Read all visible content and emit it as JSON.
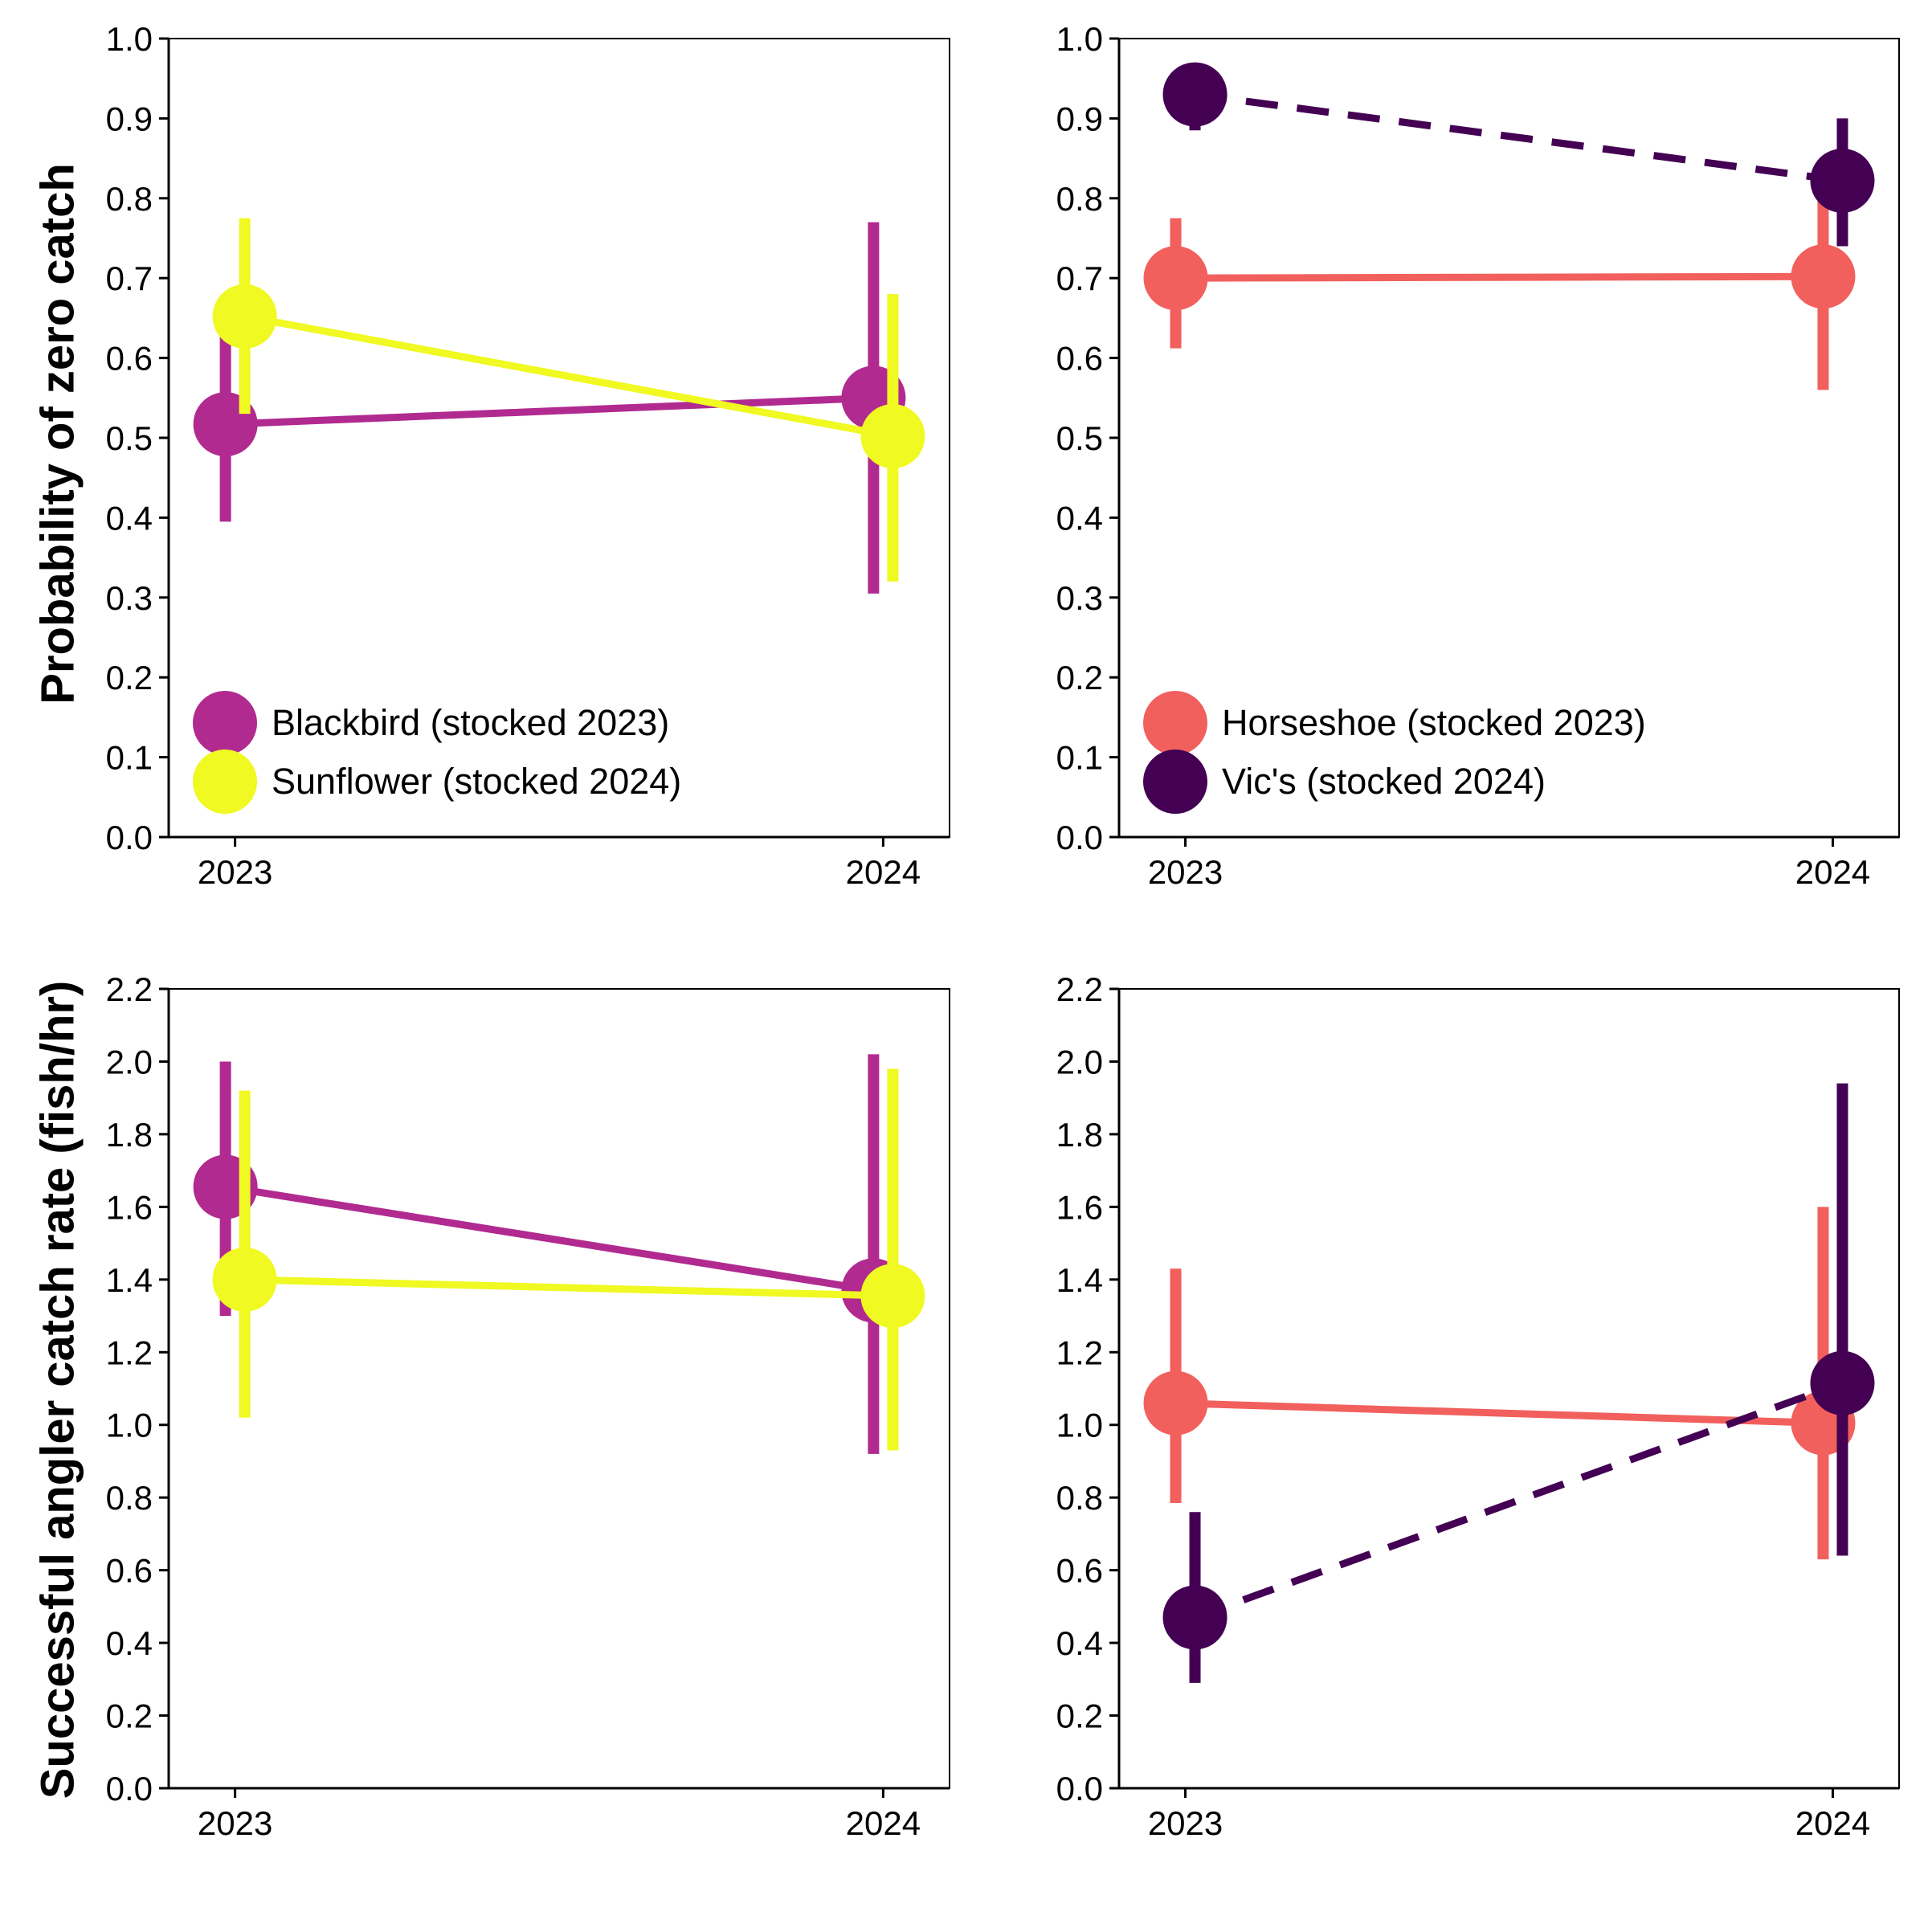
{
  "ylabels": {
    "top": "Probability of zero catch",
    "bottom": "Successful angler catch rate (fish/hr)"
  },
  "colors": {
    "blackbird": "#B12A90",
    "sunflower": "#F0F921",
    "horseshoe": "#F1605D",
    "vics": "#440154"
  },
  "chart_data": [
    {
      "type": "line",
      "panel": "top-left",
      "title": "",
      "xlabel": "",
      "ylabel": "Probability of zero catch",
      "categories": [
        "2023",
        "2024"
      ],
      "ylim": [
        0,
        1
      ],
      "yticks": [
        "0.0",
        "0.1",
        "0.2",
        "0.3",
        "0.4",
        "0.5",
        "0.6",
        "0.7",
        "0.8",
        "0.9",
        "1.0"
      ],
      "legend_position": "bottom-left",
      "series": [
        {
          "name": "Blackbird (stocked 2023)",
          "color": "#B12A90",
          "dashed": false,
          "values": [
            0.517,
            0.55
          ],
          "lower": [
            0.395,
            0.305
          ],
          "upper": [
            0.64,
            0.77
          ]
        },
        {
          "name": "Sunflower (stocked 2024)",
          "color": "#F0F921",
          "dashed": false,
          "values": [
            0.652,
            0.502
          ],
          "lower": [
            0.53,
            0.32
          ],
          "upper": [
            0.775,
            0.68
          ]
        }
      ]
    },
    {
      "type": "line",
      "panel": "top-right",
      "title": "",
      "xlabel": "",
      "ylabel": "",
      "categories": [
        "2023",
        "2024"
      ],
      "ylim": [
        0,
        1
      ],
      "yticks": [
        "0.0",
        "0.1",
        "0.2",
        "0.3",
        "0.4",
        "0.5",
        "0.6",
        "0.7",
        "0.8",
        "0.9",
        "1.0"
      ],
      "legend_position": "bottom-left",
      "series": [
        {
          "name": "Horseshoe (stocked 2023)",
          "color": "#F1605D",
          "dashed": false,
          "values": [
            0.7,
            0.702
          ],
          "lower": [
            0.612,
            0.56
          ],
          "upper": [
            0.775,
            0.81
          ]
        },
        {
          "name": "Vic's (stocked 2024)",
          "color": "#440154",
          "dashed": true,
          "values": [
            0.93,
            0.822
          ],
          "lower": [
            0.885,
            0.74
          ],
          "upper": [
            0.96,
            0.9
          ]
        }
      ]
    },
    {
      "type": "line",
      "panel": "bottom-left",
      "title": "",
      "xlabel": "",
      "ylabel": "Successful angler catch rate (fish/hr)",
      "categories": [
        "2023",
        "2024"
      ],
      "ylim": [
        0,
        2.2
      ],
      "yticks": [
        "0.0",
        "0.2",
        "0.4",
        "0.6",
        "0.8",
        "1.0",
        "1.2",
        "1.4",
        "1.6",
        "1.8",
        "2.0",
        "2.2"
      ],
      "legend_position": "none",
      "series": [
        {
          "name": "Blackbird (stocked 2023)",
          "color": "#B12A90",
          "dashed": false,
          "values": [
            1.655,
            1.37
          ],
          "lower": [
            1.3,
            0.92
          ],
          "upper": [
            2.0,
            2.02
          ]
        },
        {
          "name": "Sunflower (stocked 2024)",
          "color": "#F0F921",
          "dashed": false,
          "values": [
            1.4,
            1.355
          ],
          "lower": [
            1.02,
            0.93
          ],
          "upper": [
            1.92,
            1.98
          ]
        }
      ]
    },
    {
      "type": "line",
      "panel": "bottom-right",
      "title": "",
      "xlabel": "",
      "ylabel": "",
      "categories": [
        "2023",
        "2024"
      ],
      "ylim": [
        0,
        2.2
      ],
      "yticks": [
        "0.0",
        "0.2",
        "0.4",
        "0.6",
        "0.8",
        "1.0",
        "1.2",
        "1.4",
        "1.6",
        "1.8",
        "2.0",
        "2.2"
      ],
      "legend_position": "none",
      "series": [
        {
          "name": "Horseshoe (stocked 2023)",
          "color": "#F1605D",
          "dashed": false,
          "values": [
            1.06,
            1.005
          ],
          "lower": [
            0.785,
            0.63
          ],
          "upper": [
            1.43,
            1.6
          ]
        },
        {
          "name": "Vic's (stocked 2024)",
          "color": "#440154",
          "dashed": true,
          "values": [
            0.47,
            1.115
          ],
          "lower": [
            0.29,
            0.64
          ],
          "upper": [
            0.76,
            1.94
          ]
        }
      ]
    }
  ]
}
